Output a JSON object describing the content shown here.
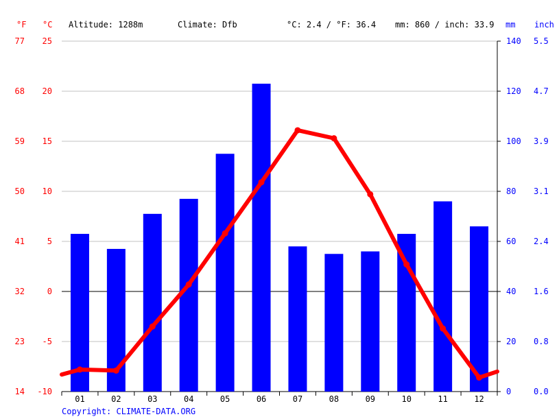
{
  "header": {
    "unit_f": "°F",
    "unit_c": "°C",
    "altitude": "Altitude: 1288m",
    "climate": "Climate: Dfb",
    "avg_temp": "°C: 2.4 / °F: 36.4",
    "precip": "mm: 860 / inch: 33.9",
    "unit_mm": "mm",
    "unit_inch": "inch"
  },
  "copyright": "Copyright: CLIMATE-DATA.ORG",
  "colors": {
    "temperature": "#ff0000",
    "precipitation": "#0000ff",
    "grid": "#c0c0c0",
    "zero_line": "#000000"
  },
  "chart_data": {
    "type": "bar",
    "categories": [
      "01",
      "02",
      "03",
      "04",
      "05",
      "06",
      "07",
      "08",
      "09",
      "10",
      "11",
      "12"
    ],
    "series": [
      {
        "type": "bar",
        "axis": "right",
        "values": [
          63,
          57,
          71,
          77,
          95,
          123,
          58,
          55,
          56,
          63,
          76,
          66
        ]
      },
      {
        "type": "line",
        "axis": "left",
        "values": [
          -7.8,
          -7.9,
          -3.5,
          0.7,
          5.8,
          10.9,
          16.1,
          15.3,
          9.7,
          2.7,
          -3.7,
          -8.6
        ]
      }
    ],
    "line_edges": {
      "left": -8.3,
      "right": -8.0
    },
    "left_axis_c": {
      "ylim": [
        -10,
        25
      ],
      "ticks": [
        "25",
        "20",
        "15",
        "10",
        "5",
        "0",
        "-5",
        "-10"
      ]
    },
    "left_axis_f": {
      "ticks": [
        "77",
        "68",
        "59",
        "50",
        "41",
        "32",
        "23",
        "14"
      ]
    },
    "right_axis_mm": {
      "ylim": [
        0,
        140
      ],
      "ticks": [
        "140",
        "120",
        "100",
        "80",
        "60",
        "40",
        "20",
        "0"
      ]
    },
    "right_axis_inch": {
      "ticks": [
        "5.5",
        "4.7",
        "3.9",
        "3.1",
        "2.4",
        "1.6",
        "0.8",
        "0.0"
      ]
    },
    "grid": true,
    "legend": "none"
  }
}
